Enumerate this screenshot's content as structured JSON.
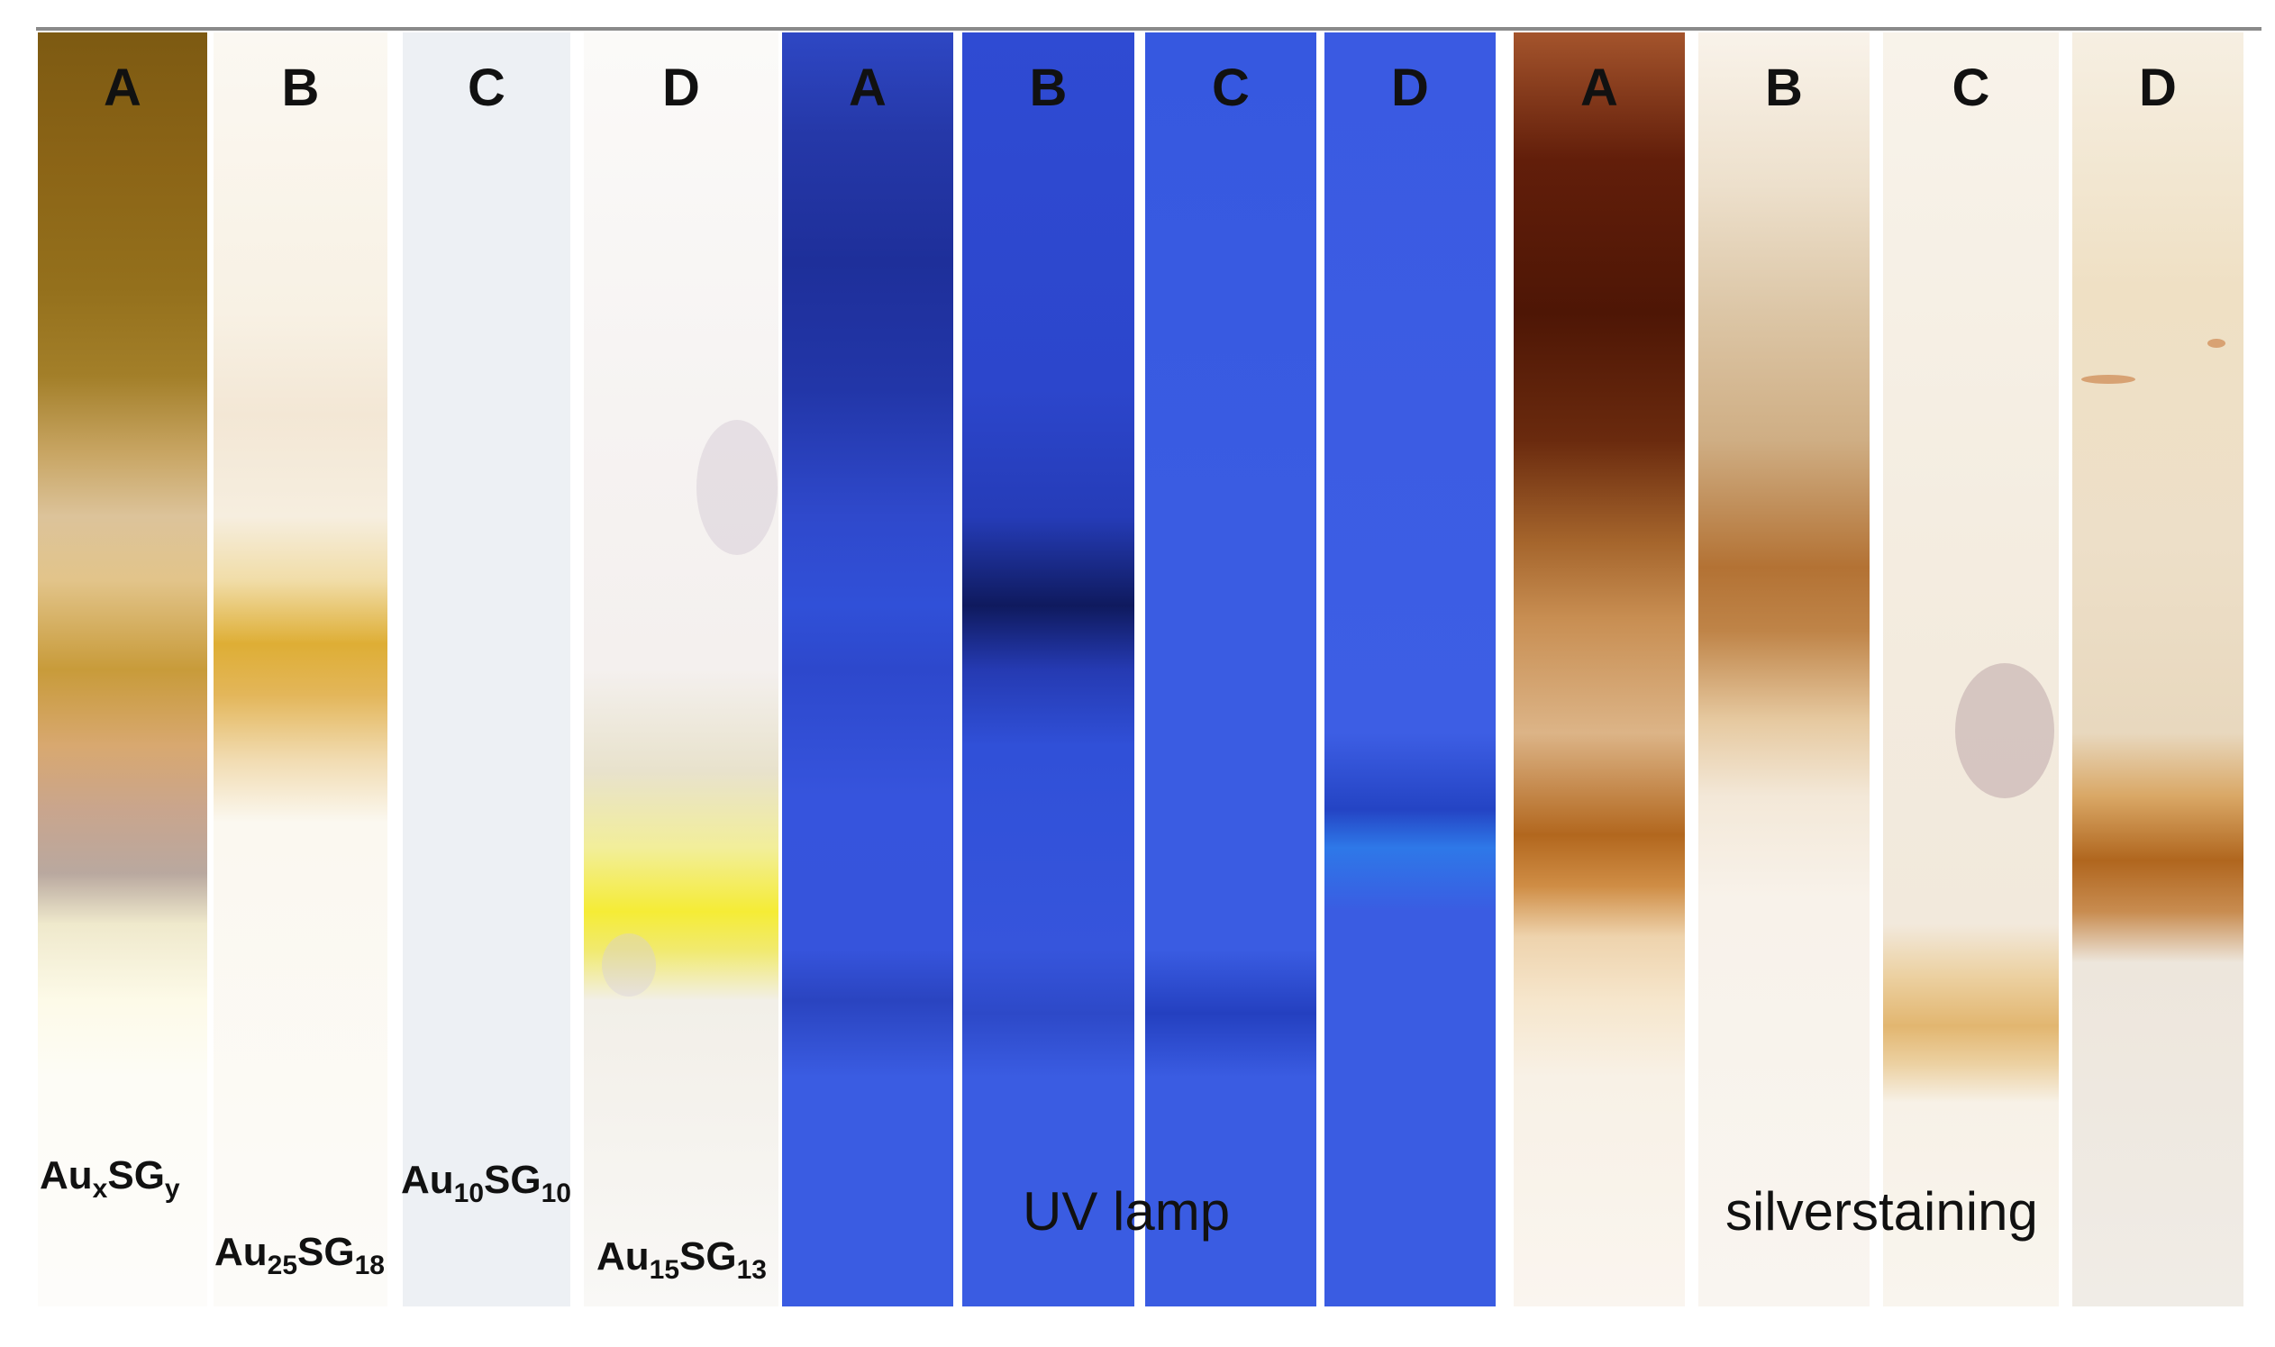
{
  "lanes": {
    "brightfield": [
      "A",
      "B",
      "C",
      "D"
    ],
    "uv": [
      "A",
      "B",
      "C",
      "D"
    ],
    "silver": [
      "A",
      "B",
      "C",
      "D"
    ]
  },
  "samples": [
    {
      "base": "Au",
      "sub1": "x",
      "mid": "SG",
      "sub2": "y"
    },
    {
      "base": "Au",
      "sub1": "25",
      "mid": "SG",
      "sub2": "18"
    },
    {
      "base": "Au",
      "sub1": "10",
      "mid": "SG",
      "sub2": "10"
    },
    {
      "base": "Au",
      "sub1": "15",
      "mid": "SG",
      "sub2": "13"
    }
  ],
  "groups": {
    "uv": "UV lamp",
    "silver": "silverstaining"
  }
}
